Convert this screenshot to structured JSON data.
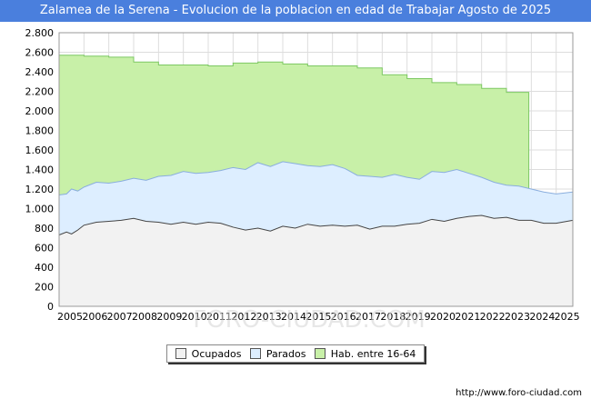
{
  "title": "Zalamea de la Serena - Evolucion de la poblacion en edad de Trabajar Agosto de 2025",
  "footer": "http://www.foro-ciudad.com",
  "watermark": "FORO-CIUDAD.COM",
  "colors": {
    "title_bg": "#4a7fdd",
    "hab_fill": "#c8f0a8",
    "hab_line": "#7cc862",
    "parados_fill": "#ddeeff",
    "parados_line": "#8aaede",
    "ocupados_fill": "#f2f2f2",
    "ocupados_line": "#444444"
  },
  "legend": [
    {
      "label": "Ocupados",
      "color": "#f2f2f2"
    },
    {
      "label": "Parados",
      "color": "#ddeeff"
    },
    {
      "label": "Hab. entre 16-64",
      "color": "#c8f0a8"
    }
  ],
  "chart_data": {
    "type": "area",
    "title": "Zalamea de la Serena - Evolucion de la poblacion en edad de Trabajar Agosto de 2025",
    "xlabel": "",
    "ylabel": "",
    "ylim": [
      0,
      2800
    ],
    "xlim": [
      2005,
      2025.67
    ],
    "yticks": [
      0,
      200,
      400,
      600,
      800,
      1000,
      1200,
      1400,
      1600,
      1800,
      2000,
      2200,
      2400,
      2600,
      2800
    ],
    "ytick_labels": [
      "0",
      "200",
      "400",
      "600",
      "800",
      "1.000",
      "1.200",
      "1.400",
      "1.600",
      "1.800",
      "2.000",
      "2.200",
      "2.400",
      "2.600",
      "2.800"
    ],
    "xtick_labels": [
      "2005",
      "2006",
      "2007",
      "2008",
      "2009",
      "2010",
      "2011",
      "2012",
      "2013",
      "2014",
      "2015",
      "2016",
      "2017",
      "2018",
      "2019",
      "2020",
      "2021",
      "2022",
      "2023",
      "2024",
      "2025"
    ],
    "grid": true,
    "legend_position": "bottom-center",
    "series": [
      {
        "name": "Hab. entre 16-64",
        "style": "step",
        "x": [
          2005,
          2006,
          2007,
          2008,
          2009,
          2010,
          2011,
          2012,
          2013,
          2014,
          2015,
          2016,
          2017,
          2018,
          2019,
          2020,
          2021,
          2022,
          2023,
          2023.9
        ],
        "values": [
          2570,
          2560,
          2550,
          2500,
          2470,
          2470,
          2460,
          2490,
          2500,
          2480,
          2460,
          2460,
          2440,
          2370,
          2330,
          2290,
          2270,
          2230,
          2190,
          2190
        ]
      },
      {
        "name": "Parados",
        "style": "line",
        "x": [
          2005.0,
          2005.3,
          2005.5,
          2005.75,
          2006.0,
          2006.5,
          2007.0,
          2007.5,
          2008.0,
          2008.5,
          2009.0,
          2009.5,
          2010.0,
          2010.5,
          2011.0,
          2011.5,
          2012.0,
          2012.5,
          2013.0,
          2013.5,
          2014.0,
          2014.5,
          2015.0,
          2015.5,
          2016.0,
          2016.5,
          2017.0,
          2017.5,
          2018.0,
          2018.5,
          2019.0,
          2019.5,
          2020.0,
          2020.5,
          2021.0,
          2021.5,
          2022.0,
          2022.5,
          2023.0,
          2023.5,
          2024.0,
          2024.5,
          2025.0,
          2025.67
        ],
        "values": [
          1140,
          1150,
          1200,
          1180,
          1220,
          1270,
          1260,
          1280,
          1310,
          1290,
          1330,
          1340,
          1380,
          1360,
          1370,
          1390,
          1420,
          1400,
          1470,
          1430,
          1480,
          1460,
          1440,
          1430,
          1450,
          1410,
          1340,
          1330,
          1320,
          1350,
          1320,
          1300,
          1380,
          1370,
          1400,
          1360,
          1320,
          1270,
          1240,
          1230,
          1200,
          1170,
          1150,
          1170
        ]
      },
      {
        "name": "Ocupados",
        "style": "line",
        "x": [
          2005.0,
          2005.3,
          2005.5,
          2005.75,
          2006.0,
          2006.5,
          2007.0,
          2007.5,
          2008.0,
          2008.5,
          2009.0,
          2009.5,
          2010.0,
          2010.5,
          2011.0,
          2011.5,
          2012.0,
          2012.5,
          2013.0,
          2013.5,
          2014.0,
          2014.5,
          2015.0,
          2015.5,
          2016.0,
          2016.5,
          2017.0,
          2017.5,
          2018.0,
          2018.5,
          2019.0,
          2019.5,
          2020.0,
          2020.5,
          2021.0,
          2021.5,
          2022.0,
          2022.5,
          2023.0,
          2023.5,
          2024.0,
          2024.5,
          2025.0,
          2025.67
        ],
        "values": [
          730,
          760,
          740,
          780,
          830,
          860,
          870,
          880,
          900,
          870,
          860,
          840,
          860,
          840,
          860,
          850,
          810,
          780,
          800,
          770,
          820,
          800,
          840,
          820,
          830,
          820,
          830,
          790,
          820,
          820,
          840,
          850,
          890,
          870,
          900,
          920,
          930,
          900,
          910,
          880,
          880,
          850,
          850,
          880
        ]
      }
    ]
  }
}
